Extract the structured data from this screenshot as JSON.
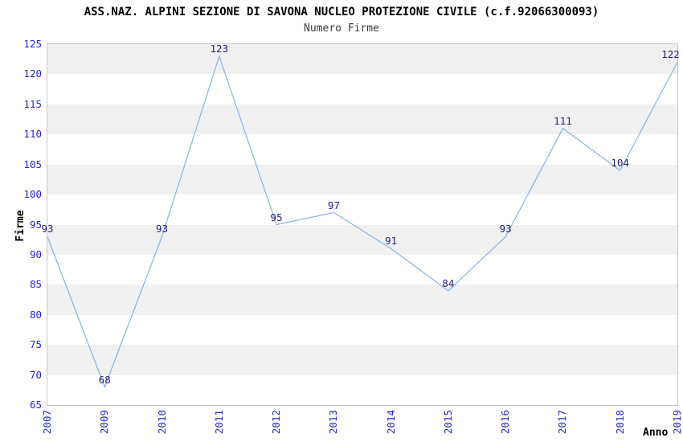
{
  "chart_data": {
    "type": "line",
    "title": "ASS.NAZ. ALPINI SEZIONE DI SAVONA NUCLEO PROTEZIONE CIVILE (c.f.92066300093)",
    "subtitle": "Numero Firme",
    "xlabel": "Anno",
    "ylabel": "Firme",
    "categories": [
      "2007",
      "2009",
      "2010",
      "2011",
      "2012",
      "2013",
      "2014",
      "2015",
      "2016",
      "2017",
      "2018",
      "2019"
    ],
    "values": [
      93,
      68,
      93,
      123,
      95,
      97,
      91,
      84,
      93,
      111,
      104,
      122
    ],
    "ylim": [
      65,
      125
    ],
    "ytick_step": 5,
    "yticks": [
      65,
      70,
      75,
      80,
      85,
      90,
      95,
      100,
      105,
      110,
      115,
      120,
      125
    ],
    "grid": "alternating-horizontal-bands",
    "legend": "none",
    "data_labels_visible": true,
    "colors": {
      "line": "#85b3e7",
      "tick_label": "#2525d5",
      "data_label": "#232387",
      "band": "#f0f0f0",
      "plot_border": "#c6c6c6",
      "title": "#000000",
      "subtitle": "#3a3a3a",
      "axis_title": "#000000",
      "background": "#ffffff"
    }
  }
}
